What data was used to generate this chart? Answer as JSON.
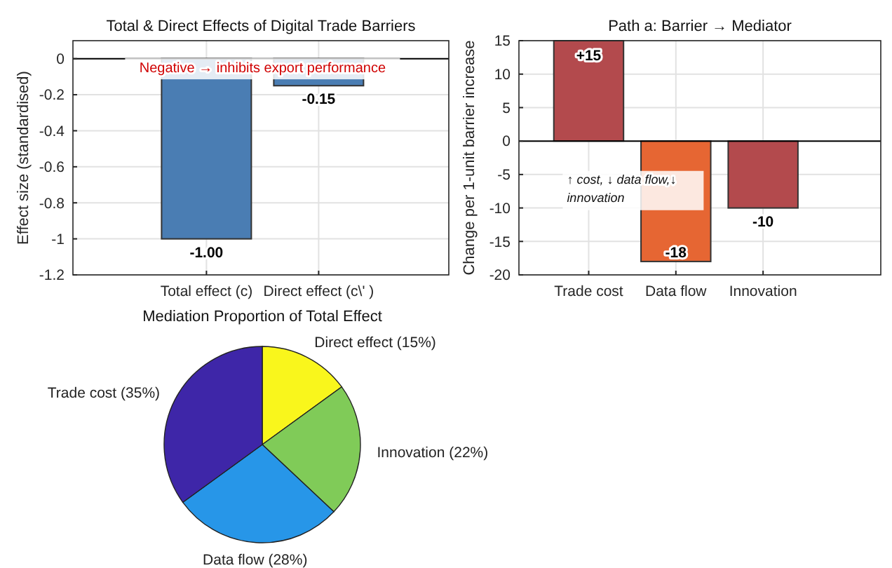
{
  "chart_data": [
    {
      "type": "bar",
      "title": "Total & Direct Effects of Digital Trade Barriers",
      "ylabel": "Effect size (standardised)",
      "categories": [
        "Total effect (c)",
        "Direct effect (c\\' )"
      ],
      "values": [
        -1.0,
        -0.15
      ],
      "color": "#4a7db3",
      "value_labels": [
        "-1.00",
        "-0.15"
      ],
      "ylim": [
        -1.2,
        0.1
      ],
      "yticks": [
        -1.2,
        -1,
        -0.8,
        -0.6,
        -0.4,
        -0.2,
        0
      ],
      "grid": true,
      "ref_lines": [
        {
          "axis": "y",
          "value": 0,
          "color": "#000000"
        }
      ],
      "annotations": [
        "Negative → inhibits export performance"
      ]
    },
    {
      "type": "bar",
      "title": "Path a: Barrier → Mediator",
      "ylabel": "Change per 1-unit barrier increase",
      "categories": [
        "Trade cost",
        "Data flow",
        "Innovation"
      ],
      "values": [
        15,
        -18,
        -10
      ],
      "colors": [
        "#b34a4d",
        "#e66633",
        "#b34a4d"
      ],
      "value_labels": [
        "+15",
        "-18",
        "-10"
      ],
      "ylim": [
        -20,
        15
      ],
      "yticks": [
        -20,
        -15,
        -10,
        -5,
        0,
        5,
        10,
        15
      ],
      "grid": true,
      "ref_lines": [
        {
          "axis": "y",
          "value": 0,
          "color": "#000000"
        }
      ],
      "annotations": [
        "↑ cost, ↓ data flow,↓ innovation"
      ]
    },
    {
      "type": "pie",
      "title": "Mediation Proportion of Total Effect",
      "categories": [
        "Direct effect (15%)",
        "Innovation (22%)",
        "Data flow (28%)",
        "Trade cost (35%)"
      ],
      "values": [
        15,
        22,
        28,
        35
      ],
      "colors": [
        "#f9f61c",
        "#80cb58",
        "#2796e8",
        "#3e26a8"
      ]
    }
  ]
}
